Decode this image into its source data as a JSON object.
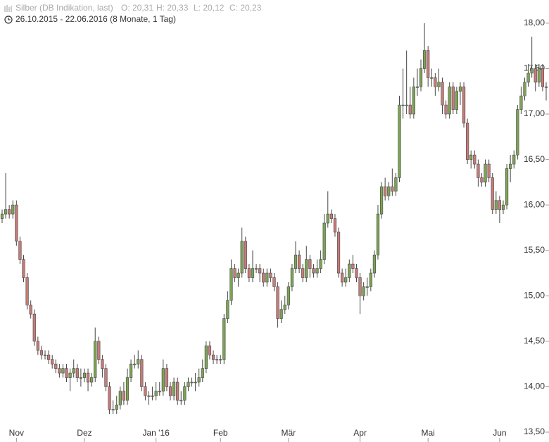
{
  "chart_data": {
    "type": "candlestick",
    "title": "Silber (DB Indikation, last)",
    "quote": [
      "O: 20,31",
      "H: 20,33",
      "L: 20,12",
      "C: 20,23"
    ],
    "subtitle": "26.10.2015 - 22.06.2016 (8 Monate, 1 Tag)",
    "up_color": "#7da353",
    "down_color": "#c77b78",
    "categories": [
      null,
      null,
      null,
      null,
      "Nov",
      null,
      null,
      null,
      null,
      null,
      null,
      null,
      null,
      null,
      null,
      null,
      null,
      null,
      null,
      null,
      null,
      null,
      null,
      "Dez",
      null,
      null,
      null,
      null,
      null,
      null,
      null,
      null,
      null,
      null,
      null,
      null,
      null,
      null,
      null,
      null,
      null,
      null,
      null,
      "Jan '16",
      null,
      null,
      null,
      null,
      null,
      null,
      null,
      null,
      null,
      null,
      null,
      null,
      null,
      null,
      null,
      null,
      null,
      "Feb",
      null,
      null,
      null,
      null,
      null,
      null,
      null,
      null,
      null,
      null,
      null,
      null,
      null,
      null,
      null,
      null,
      null,
      null,
      "Mär",
      null,
      null,
      null,
      null,
      null,
      null,
      null,
      null,
      null,
      null,
      null,
      null,
      null,
      null,
      null,
      null,
      null,
      null,
      null,
      "Apr",
      null,
      null,
      null,
      null,
      null,
      null,
      null,
      null,
      null,
      null,
      null,
      null,
      null,
      null,
      null,
      null,
      null,
      null,
      "Mai",
      null,
      null,
      null,
      null,
      null,
      null,
      null,
      null,
      null,
      null,
      null,
      null,
      null,
      null,
      null,
      null,
      null,
      null,
      null,
      "Jun",
      null,
      null,
      null,
      null,
      null,
      null,
      null,
      null,
      null,
      null,
      null,
      null,
      null
    ],
    "open": [
      15.85,
      15.9,
      15.95,
      15.9,
      16.0,
      15.6,
      15.4,
      15.2,
      14.9,
      14.8,
      14.5,
      14.4,
      14.35,
      14.35,
      14.3,
      14.25,
      14.2,
      14.15,
      14.2,
      14.1,
      14.15,
      14.2,
      14.1,
      14.1,
      14.15,
      14.05,
      14.1,
      14.5,
      14.3,
      14.2,
      14.0,
      13.75,
      13.75,
      13.8,
      13.95,
      13.85,
      14.1,
      14.25,
      14.25,
      14.3,
      14.0,
      13.9,
      13.9,
      13.9,
      13.95,
      13.95,
      14.2,
      14.0,
      13.9,
      14.05,
      13.85,
      13.85,
      14.0,
      14.05,
      14.05,
      14.05,
      14.1,
      14.2,
      14.45,
      14.35,
      14.3,
      14.3,
      14.3,
      14.75,
      14.95,
      15.3,
      15.2,
      15.25,
      15.6,
      15.3,
      15.2,
      15.3,
      15.3,
      15.25,
      15.15,
      15.25,
      15.2,
      15.1,
      14.75,
      14.85,
      14.9,
      15.1,
      15.3,
      15.45,
      15.3,
      15.2,
      15.4,
      15.3,
      15.25,
      15.3,
      15.4,
      15.8,
      15.9,
      15.85,
      15.7,
      15.25,
      15.15,
      15.2,
      15.35,
      15.3,
      15.2,
      15.0,
      15.1,
      15.1,
      15.25,
      15.45,
      15.9,
      16.2,
      16.1,
      16.2,
      16.15,
      16.3,
      17.1,
      17.1,
      17.1,
      17.0,
      17.3,
      17.3,
      17.5,
      17.7,
      17.4,
      17.4,
      17.3,
      17.35,
      17.1,
      17.0,
      17.3,
      17.05,
      17.25,
      17.3,
      16.9,
      16.5,
      16.55,
      16.45,
      16.3,
      16.25,
      16.45,
      16.3,
      15.95,
      16.05,
      15.95,
      16.0,
      16.4,
      16.45,
      16.55,
      17.05,
      17.2,
      17.35,
      17.45,
      17.5,
      17.35,
      17.5,
      17.3
    ],
    "high": [
      15.95,
      16.35,
      16.0,
      16.05,
      16.05,
      15.65,
      15.45,
      15.25,
      14.95,
      14.85,
      14.55,
      14.45,
      14.4,
      14.4,
      14.35,
      14.3,
      14.25,
      14.25,
      14.25,
      14.2,
      14.3,
      14.25,
      14.2,
      14.2,
      14.2,
      14.15,
      14.65,
      14.55,
      14.35,
      14.25,
      14.05,
      13.85,
      13.9,
      14.0,
      14.05,
      14.2,
      14.3,
      14.35,
      14.4,
      14.35,
      14.05,
      13.95,
      14.0,
      14.05,
      14.05,
      14.3,
      14.25,
      14.05,
      14.1,
      14.1,
      13.95,
      14.05,
      14.1,
      14.1,
      14.15,
      14.2,
      14.3,
      14.5,
      14.5,
      14.4,
      14.35,
      14.35,
      14.8,
      15.05,
      15.4,
      15.35,
      15.3,
      15.75,
      15.65,
      15.35,
      15.5,
      15.35,
      15.35,
      15.3,
      15.3,
      15.3,
      15.25,
      15.15,
      14.95,
      15.0,
      15.15,
      15.35,
      15.6,
      15.5,
      15.35,
      15.55,
      15.45,
      15.35,
      15.4,
      15.5,
      15.9,
      16.15,
      15.95,
      15.9,
      15.75,
      15.3,
      15.3,
      15.4,
      15.45,
      15.35,
      15.25,
      15.15,
      15.2,
      15.3,
      15.5,
      16.0,
      16.25,
      16.3,
      16.25,
      16.4,
      16.35,
      17.2,
      17.5,
      17.7,
      17.3,
      17.4,
      17.5,
      17.6,
      18.0,
      17.75,
      17.5,
      17.45,
      17.5,
      17.4,
      17.15,
      17.35,
      17.35,
      17.3,
      17.35,
      17.35,
      16.95,
      16.6,
      16.6,
      16.5,
      16.35,
      16.5,
      16.5,
      16.35,
      16.15,
      16.1,
      16.05,
      16.45,
      16.55,
      16.6,
      17.1,
      17.3,
      17.4,
      17.55,
      17.85,
      17.55,
      17.55,
      17.55,
      17.35
    ],
    "low": [
      15.8,
      15.85,
      15.85,
      15.85,
      15.55,
      15.35,
      15.15,
      14.85,
      14.75,
      14.45,
      14.35,
      14.3,
      14.3,
      14.25,
      14.2,
      14.15,
      14.1,
      14.1,
      14.05,
      13.95,
      14.1,
      14.05,
      14.0,
      14.05,
      13.95,
      14.0,
      14.05,
      14.25,
      14.1,
      13.95,
      13.7,
      13.7,
      13.7,
      13.75,
      13.8,
      13.8,
      14.05,
      14.2,
      14.2,
      13.95,
      13.85,
      13.8,
      13.85,
      13.85,
      13.9,
      13.9,
      13.95,
      13.85,
      13.85,
      13.8,
      13.8,
      13.8,
      13.95,
      14.0,
      13.95,
      14.0,
      14.05,
      14.15,
      14.3,
      14.25,
      14.25,
      14.25,
      14.25,
      14.7,
      14.9,
      15.15,
      15.1,
      15.2,
      15.25,
      15.15,
      15.15,
      15.25,
      15.15,
      15.1,
      15.1,
      15.15,
      15.05,
      14.65,
      14.7,
      14.8,
      14.85,
      15.05,
      15.25,
      15.25,
      15.15,
      15.15,
      15.2,
      15.2,
      15.2,
      15.25,
      15.35,
      15.75,
      15.8,
      15.65,
      15.2,
      15.1,
      15.1,
      15.15,
      15.25,
      15.15,
      14.8,
      14.95,
      15.0,
      15.05,
      15.2,
      15.4,
      15.85,
      16.05,
      16.05,
      16.1,
      16.1,
      16.25,
      16.95,
      17.0,
      16.95,
      16.95,
      17.2,
      17.25,
      17.45,
      17.3,
      17.3,
      17.2,
      17.25,
      17.0,
      16.95,
      16.95,
      17.0,
      17.0,
      17.1,
      16.85,
      16.45,
      16.4,
      16.4,
      16.2,
      16.2,
      16.2,
      16.25,
      15.9,
      15.9,
      15.8,
      15.9,
      15.95,
      16.25,
      16.4,
      16.5,
      17.0,
      17.15,
      17.3,
      17.4,
      17.25,
      17.3,
      17.25,
      17.15
    ],
    "close": [
      15.9,
      15.95,
      15.9,
      16.0,
      15.6,
      15.4,
      15.2,
      14.9,
      14.8,
      14.5,
      14.4,
      14.35,
      14.35,
      14.3,
      14.25,
      14.2,
      14.15,
      14.2,
      14.1,
      14.15,
      14.2,
      14.1,
      14.1,
      14.15,
      14.05,
      14.1,
      14.5,
      14.3,
      14.2,
      14.0,
      13.75,
      13.75,
      13.8,
      13.95,
      13.85,
      14.1,
      14.25,
      14.25,
      14.3,
      14.0,
      13.9,
      13.9,
      13.9,
      13.95,
      13.95,
      14.2,
      14.0,
      13.9,
      14.05,
      13.85,
      13.85,
      14.0,
      14.05,
      14.05,
      14.05,
      14.1,
      14.2,
      14.45,
      14.35,
      14.3,
      14.3,
      14.3,
      14.75,
      14.95,
      15.3,
      15.2,
      15.25,
      15.6,
      15.3,
      15.2,
      15.3,
      15.3,
      15.25,
      15.15,
      15.25,
      15.2,
      15.1,
      14.75,
      14.85,
      14.9,
      15.1,
      15.3,
      15.45,
      15.3,
      15.2,
      15.4,
      15.3,
      15.25,
      15.3,
      15.4,
      15.8,
      15.9,
      15.85,
      15.7,
      15.25,
      15.15,
      15.2,
      15.35,
      15.3,
      15.2,
      15.0,
      15.1,
      15.1,
      15.25,
      15.45,
      15.9,
      16.2,
      16.1,
      16.2,
      16.15,
      16.3,
      17.1,
      17.1,
      17.1,
      17.0,
      17.3,
      17.3,
      17.5,
      17.7,
      17.4,
      17.4,
      17.3,
      17.35,
      17.1,
      17.0,
      17.3,
      17.05,
      17.25,
      17.3,
      16.9,
      16.5,
      16.55,
      16.45,
      16.3,
      16.25,
      16.45,
      16.3,
      15.95,
      16.05,
      15.95,
      16.0,
      16.4,
      16.45,
      16.55,
      17.05,
      17.2,
      17.35,
      17.45,
      17.5,
      17.35,
      17.5,
      17.3,
      17.3
    ],
    "ylim": [
      13.5,
      18.1
    ],
    "yticks": [
      {
        "value": 13.5,
        "label": "13,50"
      },
      {
        "value": 14,
        "label": "14,00"
      },
      {
        "value": 14.5,
        "label": "14,50"
      },
      {
        "value": 15,
        "label": "15,00"
      },
      {
        "value": 15.5,
        "label": "15,50"
      },
      {
        "value": 16,
        "label": "16,00"
      },
      {
        "value": 16.5,
        "label": "16,50"
      },
      {
        "value": 17,
        "label": "17,00"
      },
      {
        "value": 17.5,
        "label": "17,50"
      },
      {
        "value": 18,
        "label": "18,00"
      }
    ]
  }
}
